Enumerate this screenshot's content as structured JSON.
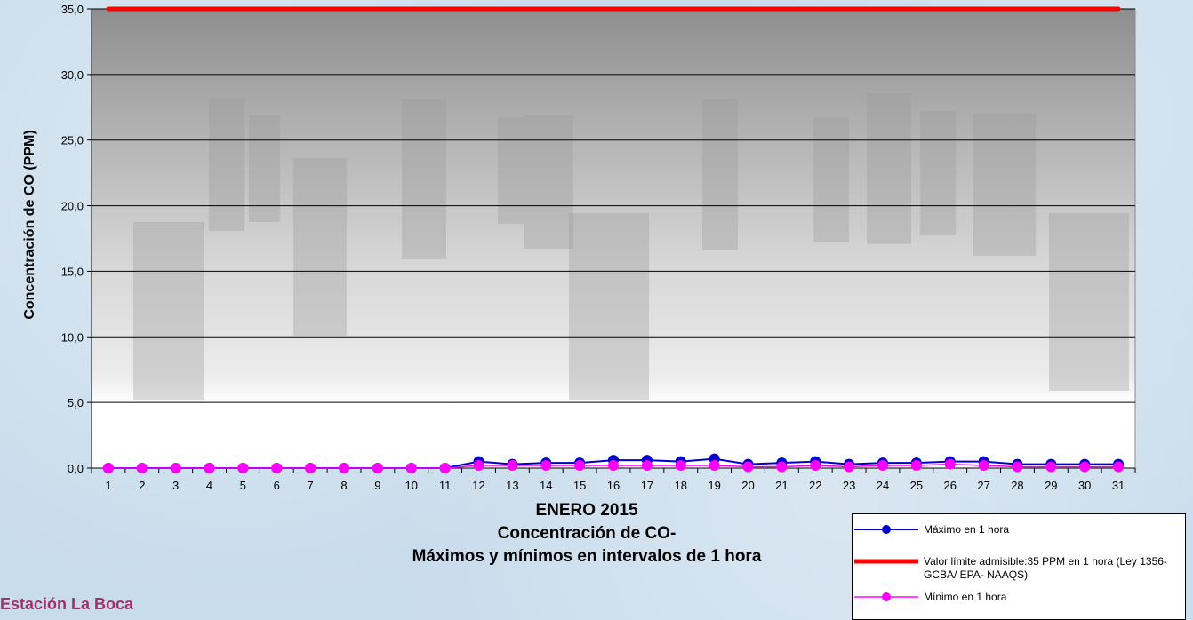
{
  "chart_data": {
    "type": "line",
    "title": "ENERO 2015",
    "subtitle_lines": [
      "Concentración de CO-",
      "Máximos y mínimos en intervalos de 1 hora"
    ],
    "xlabel": "",
    "ylabel": "Concentración de CO (PPM)",
    "ylim": [
      0,
      35
    ],
    "y_ticks": [
      "0,0",
      "5,0",
      "10,0",
      "15,0",
      "20,0",
      "25,0",
      "30,0",
      "35,0"
    ],
    "categories": [
      "1",
      "2",
      "3",
      "4",
      "5",
      "6",
      "7",
      "8",
      "9",
      "10",
      "11",
      "12",
      "13",
      "14",
      "15",
      "16",
      "17",
      "18",
      "19",
      "20",
      "21",
      "22",
      "23",
      "24",
      "25",
      "26",
      "27",
      "28",
      "29",
      "30",
      "31"
    ],
    "grid": true,
    "legend_position": "bottom-right",
    "series": [
      {
        "name": "Máximo en 1 hora",
        "color": "#0000cc",
        "marker": "circle",
        "values": [
          0.0,
          0.0,
          0.0,
          0.0,
          0.0,
          0.0,
          0.0,
          0.0,
          0.0,
          0.0,
          0.0,
          0.5,
          0.3,
          0.4,
          0.4,
          0.6,
          0.6,
          0.5,
          0.7,
          0.3,
          0.4,
          0.5,
          0.3,
          0.4,
          0.4,
          0.5,
          0.5,
          0.3,
          0.3,
          0.3,
          0.3
        ]
      },
      {
        "name": "Valor límite admisible:35 PPM en 1 hora (Ley 1356-GCBA/ EPA- NAAQS)",
        "color": "#ff0000",
        "marker": "none",
        "values": [
          35,
          35,
          35,
          35,
          35,
          35,
          35,
          35,
          35,
          35,
          35,
          35,
          35,
          35,
          35,
          35,
          35,
          35,
          35,
          35,
          35,
          35,
          35,
          35,
          35,
          35,
          35,
          35,
          35,
          35,
          35
        ]
      },
      {
        "name": "Mínimo en 1 hora",
        "color": "#ff00ff",
        "marker": "circle",
        "values": [
          0.0,
          0.0,
          0.0,
          0.0,
          0.0,
          0.0,
          0.0,
          0.0,
          0.0,
          0.0,
          0.0,
          0.2,
          0.2,
          0.2,
          0.2,
          0.2,
          0.2,
          0.2,
          0.2,
          0.1,
          0.1,
          0.2,
          0.1,
          0.2,
          0.2,
          0.3,
          0.2,
          0.1,
          0.1,
          0.1,
          0.1
        ]
      }
    ]
  },
  "station_label": "Estación La Boca"
}
